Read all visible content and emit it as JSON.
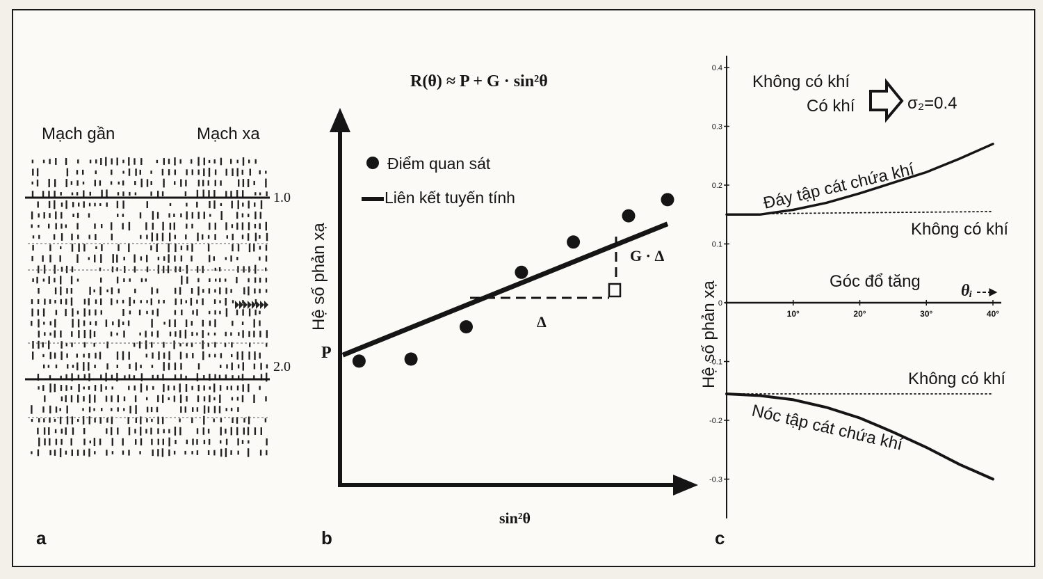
{
  "panel_a": {
    "label": "a",
    "near_trace": "Mạch gần",
    "far_trace": "Mạch xa",
    "marker_1": "1.0",
    "marker_2": "2.0"
  },
  "panel_b": {
    "label": "b",
    "formula": "R(θ) ≈ P + G · sin²θ",
    "y_axis_label": "Hệ số phản xạ",
    "x_axis_label": "sin²θ",
    "legend_points": "Điểm quan sát",
    "legend_line": "Liên kết tuyến tính",
    "intercept_label": "P",
    "delta_label": "Δ",
    "gradient_label": "G · Δ"
  },
  "panel_c": {
    "label": "c",
    "y_axis_label": "Hệ số phản xạ",
    "legend_no_gas": "Không có khí",
    "legend_gas": "Có khí",
    "legend_sigma": "σ₂=0.4",
    "base_label": "Đáy tập cát chứa khí",
    "base_no_gas": "Không có khí",
    "top_label": "Nóc tập cát chứa khí",
    "top_no_gas": "Không có khí",
    "x_axis_title": "Góc đổ tăng",
    "x_axis_symbol": "θᵢ",
    "y_ticks": [
      "0.4",
      "0.3",
      "0.2",
      "0.1",
      "0",
      "-0.1",
      "-0.2",
      "-0.3"
    ],
    "x_ticks": [
      "10°",
      "20°",
      "30°",
      "40°"
    ]
  },
  "chart_data": [
    {
      "type": "scatter",
      "panel": "b",
      "x_label": "sin²θ",
      "y_label": "Hệ số phản xạ",
      "series": [
        {
          "name": "Điểm quan sát",
          "x": [
            0.05,
            0.21,
            0.38,
            0.55,
            0.71,
            0.88,
            1.0
          ],
          "y": [
            0.09,
            0.1,
            0.26,
            0.53,
            0.68,
            0.81,
            0.89
          ]
        },
        {
          "name": "Liên kết tuyến tính",
          "x": [
            0.0,
            1.0
          ],
          "y": [
            0.12,
            0.77
          ]
        }
      ]
    },
    {
      "type": "line",
      "panel": "c",
      "x_label": "Góc đổ tăng",
      "y_label": "Hệ số phản xạ",
      "xlim": [
        0,
        40
      ],
      "ylim": [
        -0.35,
        0.4
      ],
      "series": [
        {
          "name": "Đáy tập cát chứa khí",
          "x": [
            0,
            5,
            10,
            15,
            20,
            25,
            30,
            35,
            40
          ],
          "y": [
            0.15,
            0.15,
            0.158,
            0.17,
            0.186,
            0.204,
            0.222,
            0.245,
            0.27
          ]
        },
        {
          "name": "Không có khí",
          "x": [
            0,
            10,
            20,
            30,
            40
          ],
          "y": [
            0.15,
            0.152,
            0.153,
            0.154,
            0.155
          ]
        },
        {
          "name": "Nóc tập cát chứa khí",
          "x": [
            0,
            5,
            10,
            15,
            20,
            25,
            30,
            35,
            40
          ],
          "y": [
            -0.155,
            -0.158,
            -0.165,
            -0.178,
            -0.196,
            -0.22,
            -0.246,
            -0.275,
            -0.3
          ]
        },
        {
          "name": "Không có khí",
          "x": [
            0,
            10,
            20,
            30,
            40
          ],
          "y": [
            -0.155,
            -0.155,
            -0.155,
            -0.155,
            -0.155
          ]
        }
      ]
    }
  ]
}
